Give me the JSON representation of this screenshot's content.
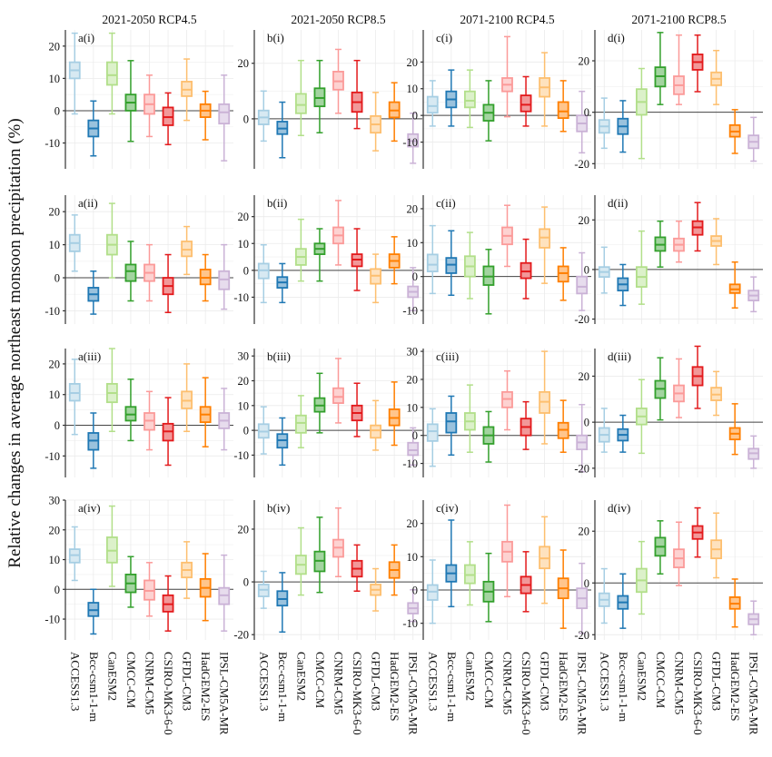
{
  "figure": {
    "ylabel": "Relative changes in average northeast monsoon precipitation (%)",
    "columns": [
      {
        "title": "2021-2050 RCP4.5",
        "id": "a"
      },
      {
        "title": "2021-2050 RCP8.5",
        "id": "b"
      },
      {
        "title": "2071-2100 RCP4.5",
        "id": "c"
      },
      {
        "title": "2071-2100 RCP8.5",
        "id": "d"
      }
    ],
    "rows": [
      "i",
      "ii",
      "iii",
      "iv"
    ],
    "models": [
      "ACCESS1.3",
      "Bcc-csm1-1-m",
      "CanESM2",
      "CMCC-CM",
      "CNRM-CM5",
      "CSIRO-MK3-6-0",
      "GFDL-CM3",
      "HadGEM2-ES",
      "IPSL-CM5A-MR"
    ],
    "colors": [
      "#a6cee3",
      "#1f78b4",
      "#b2df8a",
      "#33a02c",
      "#fb9a99",
      "#e31a1c",
      "#fdbf6f",
      "#ff7f00",
      "#cab2d6"
    ]
  },
  "chart_data": [
    {
      "type": "boxplot",
      "panel": "a(i)",
      "title": "2021-2050 RCP4.5",
      "ylim": [
        -18,
        25
      ],
      "yticks": [
        -10,
        0,
        10,
        20
      ],
      "boxes": [
        [
          -1,
          10,
          12.5,
          15,
          24
        ],
        [
          -14,
          -8,
          -5.5,
          -3,
          3
        ],
        [
          -1,
          8,
          11,
          15,
          24
        ],
        [
          -9.5,
          0,
          2.5,
          5,
          15.5
        ],
        [
          -8,
          -1,
          2,
          5,
          11
        ],
        [
          -10.5,
          -4.5,
          -2,
          1,
          5.5
        ],
        [
          -3,
          4.5,
          6.5,
          9,
          16
        ],
        [
          -9,
          -2,
          0,
          2,
          6
        ],
        [
          -15.5,
          -4,
          -0.5,
          2,
          11
        ]
      ]
    },
    {
      "type": "boxplot",
      "panel": "b(i)",
      "title": "2021-2050 RCP8.5",
      "ylim": [
        -18,
        32
      ],
      "yticks": [
        0,
        20
      ],
      "boxes": [
        [
          -8,
          -2,
          0.5,
          3,
          10
        ],
        [
          -14,
          -5.5,
          -3.5,
          -1,
          6
        ],
        [
          -6,
          2,
          5,
          9,
          21
        ],
        [
          -5,
          4.5,
          7.5,
          11,
          21
        ],
        [
          2,
          10.5,
          13.5,
          17,
          25
        ],
        [
          -3.5,
          2.5,
          6,
          9.5,
          21
        ],
        [
          -11.5,
          -5,
          -2,
          1,
          9.5
        ],
        [
          -8,
          0.5,
          3,
          6,
          13
        ],
        [
          -16,
          -10,
          -8,
          -5.5,
          2
        ]
      ]
    },
    {
      "type": "boxplot",
      "panel": "c(i)",
      "title": "2071-2100 RCP4.5",
      "ylim": [
        -20,
        32
      ],
      "yticks": [
        -10,
        0,
        10,
        20
      ],
      "boxes": [
        [
          -4,
          1,
          3.5,
          7,
          13
        ],
        [
          -4,
          3,
          6,
          9,
          17
        ],
        [
          -4.5,
          3,
          5.5,
          9,
          17
        ],
        [
          -9.5,
          -2,
          1,
          4,
          13
        ],
        [
          -0.5,
          9,
          11.5,
          14,
          29.5
        ],
        [
          -4,
          1.5,
          4,
          7.5,
          14.5
        ],
        [
          -4,
          7,
          10.5,
          14,
          23.5
        ],
        [
          -6,
          -1,
          1.5,
          5,
          13
        ],
        [
          -14,
          -6,
          -3,
          0,
          9
        ]
      ]
    },
    {
      "type": "boxplot",
      "panel": "d(i)",
      "title": "2071-2100 RCP8.5",
      "ylim": [
        -22,
        32
      ],
      "yticks": [
        -20,
        0,
        20
      ],
      "boxes": [
        [
          -14,
          -8,
          -5.5,
          -3,
          5.5
        ],
        [
          -15.5,
          -8.5,
          -5.5,
          -2.5,
          4.5
        ],
        [
          -18,
          -1,
          4,
          9,
          17
        ],
        [
          3,
          10,
          14,
          17.5,
          31
        ],
        [
          3,
          7,
          10.5,
          14,
          30
        ],
        [
          8,
          16.5,
          19.5,
          22.5,
          30
        ],
        [
          3,
          10.5,
          13,
          15.5,
          24
        ],
        [
          -16,
          -9.5,
          -7.5,
          -5,
          1
        ],
        [
          -19,
          -14,
          -11.5,
          -9,
          -2
        ]
      ]
    },
    {
      "type": "boxplot",
      "panel": "a(ii)",
      "title": "2021-2050 RCP4.5",
      "ylim": [
        -14,
        25
      ],
      "yticks": [
        -10,
        0,
        10,
        20
      ],
      "boxes": [
        [
          2,
          8,
          10.5,
          13,
          19
        ],
        [
          -11,
          -7,
          -5,
          -3,
          2
        ],
        [
          0,
          7,
          10,
          13,
          22.5
        ],
        [
          -7,
          -1,
          2,
          4,
          11
        ],
        [
          -7,
          -1,
          1.5,
          4,
          10
        ],
        [
          -10.5,
          -5,
          -2.5,
          0,
          7
        ],
        [
          1,
          6.5,
          8.5,
          11,
          15.5
        ],
        [
          -7,
          -2,
          0,
          2.5,
          7
        ],
        [
          -9.5,
          -3.5,
          -0.5,
          2,
          10
        ]
      ]
    },
    {
      "type": "boxplot",
      "panel": "b(ii)",
      "title": "2021-2050 RCP8.5",
      "ylim": [
        -20,
        28
      ],
      "yticks": [
        -10,
        0,
        10,
        20
      ],
      "boxes": [
        [
          -12,
          -3,
          0,
          2.5,
          9.5
        ],
        [
          -12,
          -6.5,
          -4.5,
          -2.5,
          2.5
        ],
        [
          -4,
          2,
          5,
          8,
          19
        ],
        [
          -4,
          6,
          8,
          10,
          15.5
        ],
        [
          2,
          10,
          13,
          16,
          26
        ],
        [
          -7.5,
          1.5,
          4,
          6,
          15.5
        ],
        [
          -12,
          -5,
          -2,
          0.5,
          6
        ],
        [
          -5,
          1,
          3.5,
          6,
          12.5
        ],
        [
          -15,
          -10,
          -8,
          -6,
          1
        ]
      ]
    },
    {
      "type": "boxplot",
      "panel": "c(ii)",
      "title": "2071-2100 RCP4.5",
      "ylim": [
        -14,
        24
      ],
      "yticks": [
        -10,
        0,
        10,
        20
      ],
      "boxes": [
        [
          -5,
          1.5,
          3.5,
          6.5,
          15
        ],
        [
          -5.5,
          1,
          3.5,
          5.5,
          13.5
        ],
        [
          -6.5,
          0,
          3,
          6,
          13
        ],
        [
          -11,
          -2.5,
          0,
          3,
          8
        ],
        [
          3,
          9.5,
          12,
          14.5,
          21
        ],
        [
          -6.5,
          -0.5,
          1.5,
          4,
          11
        ],
        [
          -2,
          8.5,
          11.5,
          14,
          20.5
        ],
        [
          -7,
          -1.5,
          1,
          3,
          8.5
        ],
        [
          -10,
          -5,
          -3,
          0,
          7
        ]
      ]
    },
    {
      "type": "boxplot",
      "panel": "d(ii)",
      "title": "2071-2100 RCP8.5",
      "ylim": [
        -22,
        30
      ],
      "yticks": [
        -20,
        0,
        20
      ],
      "boxes": [
        [
          -9.5,
          -3,
          -1,
          1,
          9
        ],
        [
          -14.5,
          -8.5,
          -6,
          -3.5,
          2
        ],
        [
          -14,
          -7,
          -3,
          1,
          15.5
        ],
        [
          1,
          7.5,
          10,
          13,
          19.5
        ],
        [
          3,
          7.5,
          10,
          12.5,
          19.5
        ],
        [
          7.5,
          14,
          17,
          19.5,
          27
        ],
        [
          2,
          9.5,
          11.5,
          13.5,
          20.5
        ],
        [
          -15.5,
          -9.5,
          -8,
          -6,
          3
        ],
        [
          -17,
          -12.5,
          -10.5,
          -8.5,
          -3
        ]
      ]
    },
    {
      "type": "boxplot",
      "panel": "a(iii)",
      "title": "2021-2050 RCP4.5",
      "ylim": [
        -17,
        25
      ],
      "yticks": [
        -10,
        0,
        10,
        20
      ],
      "boxes": [
        [
          -3,
          8,
          10.5,
          13.5,
          21.5
        ],
        [
          -14,
          -8,
          -5,
          -2.5,
          4
        ],
        [
          -2,
          7.5,
          10.5,
          13.5,
          25
        ],
        [
          -5,
          1.5,
          3.5,
          6,
          15
        ],
        [
          -8,
          -1.5,
          1.5,
          4,
          11
        ],
        [
          -13,
          -5,
          -2,
          0.5,
          9
        ],
        [
          -2,
          5.5,
          8,
          11,
          20
        ],
        [
          -7,
          1,
          3.5,
          6,
          15.5
        ],
        [
          -8,
          -1,
          1.5,
          4,
          12
        ]
      ]
    },
    {
      "type": "boxplot",
      "panel": "b(iii)",
      "title": "2021-2050 RCP8.5",
      "ylim": [
        -19,
        33
      ],
      "yticks": [
        -10,
        0,
        10,
        20,
        30
      ],
      "boxes": [
        [
          -9.5,
          -3,
          -0.5,
          2.5,
          9.5
        ],
        [
          -14,
          -7,
          -4,
          -1.5,
          5
        ],
        [
          -7,
          -1,
          3,
          6,
          14
        ],
        [
          -1,
          7.5,
          10,
          13,
          23
        ],
        [
          3,
          11,
          13.5,
          17,
          29
        ],
        [
          -2.5,
          4,
          7,
          10,
          19
        ],
        [
          -8,
          -3,
          0,
          2,
          12
        ],
        [
          -6,
          2,
          5,
          8.5,
          19.5
        ],
        [
          -14,
          -10,
          -8,
          -5,
          1
        ]
      ]
    },
    {
      "type": "boxplot",
      "panel": "c(iii)",
      "title": "2071-2100 RCP4.5",
      "ylim": [
        -15,
        31
      ],
      "yticks": [
        -10,
        0,
        10,
        20,
        30
      ],
      "boxes": [
        [
          -11,
          -2,
          1.5,
          4,
          9.5
        ],
        [
          -7,
          1,
          5,
          8,
          14
        ],
        [
          -6,
          2,
          5,
          8,
          18
        ],
        [
          -9.5,
          -3,
          0,
          3,
          8.5
        ],
        [
          2,
          10,
          13,
          15.5,
          23
        ],
        [
          -5,
          0,
          3,
          6,
          12
        ],
        [
          -3,
          8,
          12,
          15.5,
          30
        ],
        [
          -6,
          -1,
          2,
          4.5,
          12.5
        ],
        [
          -13,
          -5,
          -2.5,
          0,
          11
        ]
      ]
    },
    {
      "type": "boxplot",
      "panel": "d(iii)",
      "title": "2071-2100 RCP8.5",
      "ylim": [
        -24,
        32
      ],
      "yticks": [
        -20,
        0,
        20
      ],
      "boxes": [
        [
          -13,
          -8.5,
          -5.5,
          -2.5,
          6
        ],
        [
          -13,
          -8,
          -5.5,
          -3,
          3
        ],
        [
          -13.5,
          -1,
          2.5,
          6,
          18.5
        ],
        [
          1,
          10.5,
          14.5,
          18,
          28
        ],
        [
          2,
          9,
          12.5,
          16,
          27.5
        ],
        [
          6,
          16,
          20,
          24,
          33
        ],
        [
          3,
          9.5,
          12,
          15,
          22
        ],
        [
          -14,
          -7.5,
          -5,
          -2.5,
          8
        ],
        [
          -20,
          -16,
          -13.5,
          -11.5,
          -6
        ]
      ]
    },
    {
      "type": "boxplot",
      "panel": "a(iv)",
      "title": "2021-2050 RCP4.5",
      "ylim": [
        -17,
        30
      ],
      "yticks": [
        -10,
        0,
        10,
        20,
        30
      ],
      "boxes": [
        [
          3,
          9,
          11.5,
          13.5,
          21
        ],
        [
          -15,
          -9,
          -7,
          -4.5,
          0
        ],
        [
          1,
          9,
          13,
          17.5,
          28
        ],
        [
          -6,
          -1,
          2,
          5,
          11
        ],
        [
          -9,
          -3.5,
          -0.5,
          3,
          9
        ],
        [
          -14,
          -7.5,
          -5,
          -2,
          4.5
        ],
        [
          -3,
          4,
          6.5,
          9,
          16
        ],
        [
          -10.5,
          -2.5,
          0.5,
          3.5,
          12
        ],
        [
          -14,
          -5,
          -2,
          0.5,
          11.5
        ]
      ]
    },
    {
      "type": "boxplot",
      "panel": "b(iv)",
      "title": "2021-2050 RCP8.5",
      "ylim": [
        -22,
        31
      ],
      "yticks": [
        -20,
        0,
        20
      ],
      "boxes": [
        [
          -10,
          -5.5,
          -3,
          -1,
          4
        ],
        [
          -19,
          -9,
          -6.5,
          -3.5,
          3.5
        ],
        [
          -5,
          3,
          6.5,
          10,
          20.5
        ],
        [
          -4,
          4,
          8,
          11.5,
          24.5
        ],
        [
          2,
          9.5,
          13,
          16,
          28
        ],
        [
          -3.5,
          2,
          5,
          8,
          14
        ],
        [
          -11,
          -5,
          -3,
          -1,
          5
        ],
        [
          -5,
          1.5,
          4.5,
          7.5,
          14
        ],
        [
          -15,
          -12,
          -10,
          -8,
          -3
        ]
      ]
    },
    {
      "type": "boxplot",
      "panel": "c(iv)",
      "title": "2071-2100 RCP4.5",
      "ylim": [
        -15,
        27
      ],
      "yticks": [
        -10,
        0,
        10,
        20
      ],
      "boxes": [
        [
          -10,
          -3,
          -0.5,
          1.5,
          9
        ],
        [
          -5,
          2.5,
          5,
          7.5,
          21
        ],
        [
          -4.5,
          2,
          4.5,
          7.5,
          14.5
        ],
        [
          -9.5,
          -3.5,
          -0.5,
          2.5,
          11
        ],
        [
          -2,
          8.5,
          11.5,
          14.5,
          25.5
        ],
        [
          -6.5,
          -1,
          1.5,
          4,
          11.5
        ],
        [
          -4,
          6.5,
          9.5,
          13,
          22
        ],
        [
          -11.5,
          -2.5,
          0.5,
          3.5,
          12
        ],
        [
          -13,
          -5.5,
          -2.5,
          0.5,
          8
        ]
      ]
    },
    {
      "type": "boxplot",
      "panel": "d(iv)",
      "title": "2071-2100 RCP8.5",
      "ylim": [
        -22,
        32
      ],
      "yticks": [
        -20,
        0,
        20
      ],
      "boxes": [
        [
          -15.5,
          -9,
          -6.5,
          -4,
          5.5
        ],
        [
          -17.5,
          -10,
          -7.5,
          -5,
          3.5
        ],
        [
          -12,
          -3.5,
          1,
          5.5,
          16
        ],
        [
          3.5,
          10.5,
          14,
          17.5,
          24
        ],
        [
          -1,
          6,
          9.5,
          13,
          23.5
        ],
        [
          10,
          17,
          19.5,
          22,
          29
        ],
        [
          2,
          9.5,
          13,
          16.5,
          27
        ],
        [
          -17,
          -10,
          -8,
          -5.5,
          1.5
        ],
        [
          -20,
          -16,
          -14,
          -12,
          -7
        ]
      ]
    }
  ]
}
